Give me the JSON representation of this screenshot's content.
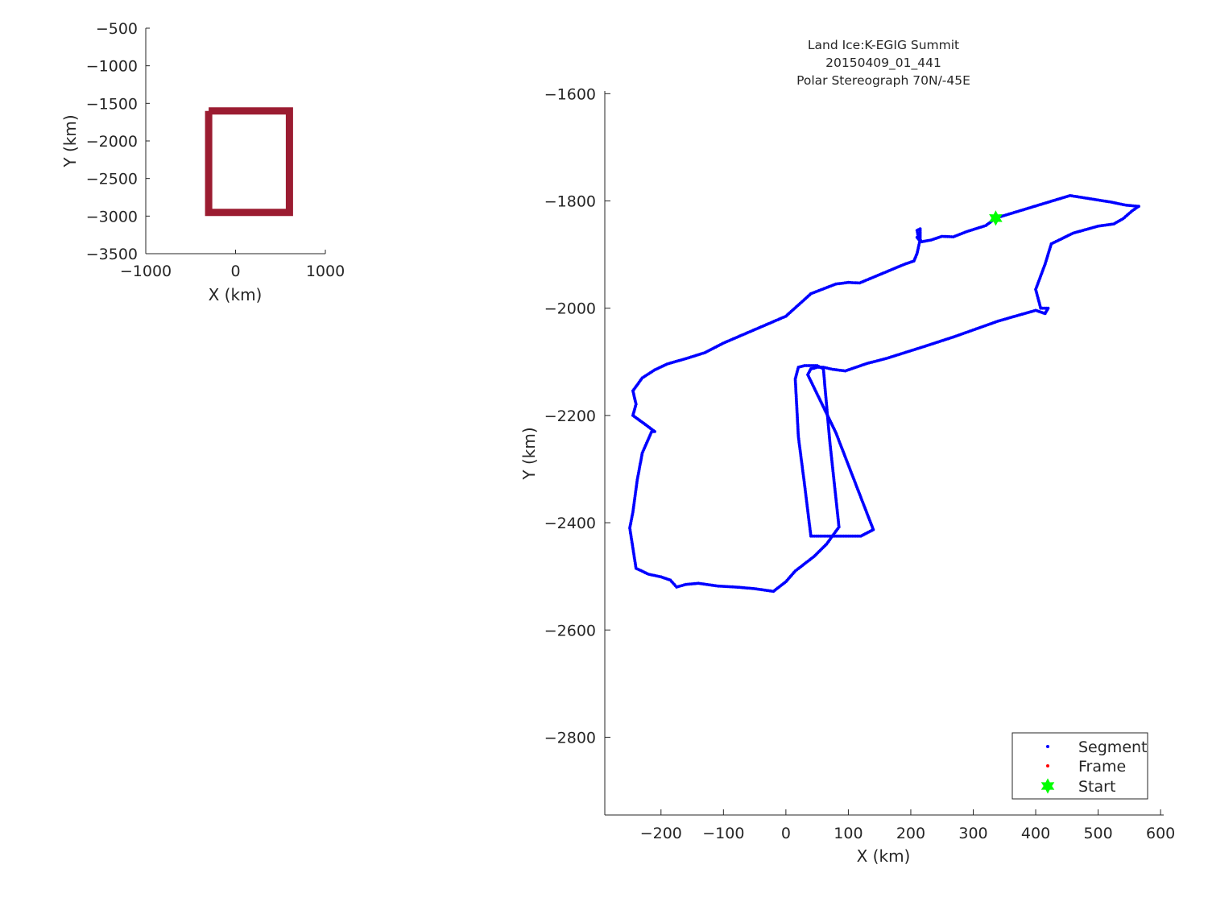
{
  "chart_data": [
    {
      "type": "line",
      "name": "inset-map",
      "xlabel": "X (km)",
      "ylabel": "Y (km)",
      "xlim": [
        -1000,
        1000
      ],
      "ylim": [
        -3500,
        -500
      ],
      "xticks": [
        -1000,
        0,
        1000
      ],
      "xtick_labels": [
        "−1000",
        "0",
        "1000"
      ],
      "yticks": [
        -500,
        -1000,
        -1500,
        -2000,
        -2500,
        -3000,
        -3500
      ],
      "ytick_labels": [
        "−500",
        "−1000",
        "−1500",
        "−2000",
        "−2500",
        "−3000",
        "−3500"
      ],
      "grid": false,
      "box": {
        "x": [
          -300,
          600,
          600,
          -300,
          -300
        ],
        "y": [
          -1600,
          -1600,
          -2950,
          -2950,
          -1600
        ]
      },
      "box_color": "#9b1c31"
    },
    {
      "type": "scatter",
      "name": "flight-track",
      "title_lines": [
        "Land Ice:K-EGIG Summit",
        "20150409_01_441",
        "Polar Stereograph 70N/-45E"
      ],
      "xlabel": "X (km)",
      "ylabel": "Y (km)",
      "xlim": [
        -290,
        605
      ],
      "ylim": [
        -2945,
        -1595
      ],
      "xticks": [
        -200,
        -100,
        0,
        100,
        200,
        300,
        400,
        500,
        600
      ],
      "xtick_labels": [
        "−200",
        "−100",
        "0",
        "100",
        "200",
        "300",
        "400",
        "500",
        "600"
      ],
      "yticks": [
        -1600,
        -1800,
        -2000,
        -2200,
        -2400,
        -2600,
        -2800
      ],
      "ytick_labels": [
        "−1600",
        "−1800",
        "−2000",
        "−2200",
        "−2400",
        "−2600",
        "−2800"
      ],
      "grid": false,
      "legend_position": "bottom-right",
      "series": [
        {
          "name": "Segment",
          "color": "#0000ff",
          "x": [
            336,
            455,
            520,
            545,
            565,
            555,
            540,
            525,
            500,
            460,
            425,
            415,
            400,
            408,
            420,
            415,
            400,
            340,
            270,
            220,
            160,
            130,
            95,
            75,
            60,
            50,
            45,
            40,
            35,
            80,
            140,
            120,
            95,
            70,
            55,
            40,
            30,
            20,
            15,
            20,
            30,
            50,
            60,
            70,
            85,
            65,
            45,
            15,
            0,
            -20,
            -50,
            -80,
            -110,
            -140,
            -160,
            -175,
            -185,
            -200,
            -220,
            -240,
            -250,
            -245,
            -238,
            -230,
            -215,
            -210,
            -225,
            -245,
            -240,
            -245,
            -230,
            -210,
            -190,
            -160,
            -130,
            -100,
            -50,
            0,
            40,
            80,
            100,
            118,
            190,
            205,
            210,
            215,
            215,
            210,
            213,
            210,
            218,
            232,
            250,
            268,
            290,
            320,
            336
          ],
          "y": [
            -1832,
            -1790,
            -1802,
            -1808,
            -1810,
            -1818,
            -1833,
            -1843,
            -1847,
            -1860,
            -1880,
            -1918,
            -1965,
            -2000,
            -2000,
            -2010,
            -2004,
            -2024,
            -2053,
            -2072,
            -2094,
            -2103,
            -2117,
            -2114,
            -2110,
            -2110,
            -2112,
            -2113,
            -2124,
            -2232,
            -2413,
            -2425,
            -2425,
            -2425,
            -2425,
            -2425,
            -2330,
            -2240,
            -2132,
            -2110,
            -2107,
            -2107,
            -2113,
            -2245,
            -2408,
            -2440,
            -2463,
            -2490,
            -2510,
            -2528,
            -2523,
            -2520,
            -2518,
            -2513,
            -2515,
            -2520,
            -2507,
            -2501,
            -2496,
            -2485,
            -2410,
            -2380,
            -2320,
            -2270,
            -2230,
            -2230,
            -2217,
            -2200,
            -2179,
            -2154,
            -2130,
            -2115,
            -2104,
            -2094,
            -2083,
            -2065,
            -2040,
            -2015,
            -1973,
            -1955,
            -1952,
            -1953,
            -1918,
            -1912,
            -1898,
            -1872,
            -1852,
            -1855,
            -1872,
            -1868,
            -1876,
            -1873,
            -1866,
            -1867,
            -1857,
            -1846,
            -1832
          ]
        },
        {
          "name": "Frame",
          "color": "#ff0000",
          "x": [],
          "y": []
        },
        {
          "name": "Start",
          "color": "#00ff00",
          "x": [
            336
          ],
          "y": [
            -1832
          ]
        }
      ]
    }
  ]
}
